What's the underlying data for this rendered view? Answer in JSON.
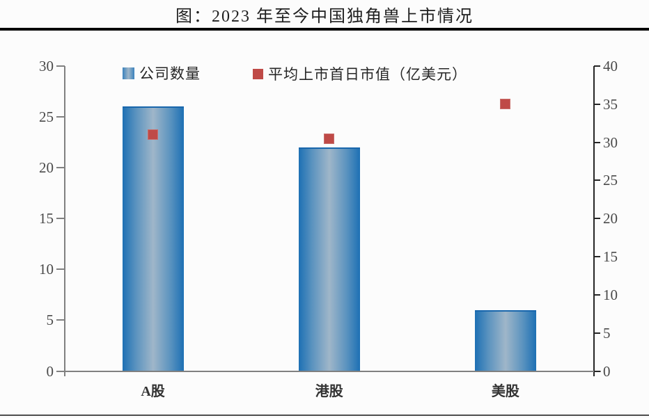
{
  "page": {
    "title": "图：2023 年至今中国独角兽上市情况"
  },
  "chart_data": {
    "type": "bar",
    "title": "图：2023 年至今中国独角兽上市情况",
    "categories": [
      "A股",
      "港股",
      "美股"
    ],
    "series": [
      {
        "name": "公司数量",
        "type": "bar",
        "axis": "left",
        "values": [
          26,
          22,
          6
        ],
        "color": "#1d70b4"
      },
      {
        "name": "平均上市首日市值（亿美元）",
        "type": "scatter",
        "axis": "right",
        "values": [
          31,
          30.5,
          35
        ],
        "color": "#bf4a47"
      }
    ],
    "left_axis": {
      "min": 0,
      "max": 30,
      "step": 5
    },
    "right_axis": {
      "min": 0,
      "max": 40,
      "step": 5
    },
    "legend_position": "top-inside",
    "grid": false,
    "colors": {
      "bar_edge": "#1d70b4",
      "bar_center": "#9fb6c9",
      "marker": "#bf4a47",
      "left_axis_line": "#808080",
      "right_axis_line": "#262626",
      "baseline": "#808080",
      "tick_label": "#4a4a4a",
      "top_rule": "#050505",
      "bottom_rule": "#4d4d4d"
    }
  }
}
